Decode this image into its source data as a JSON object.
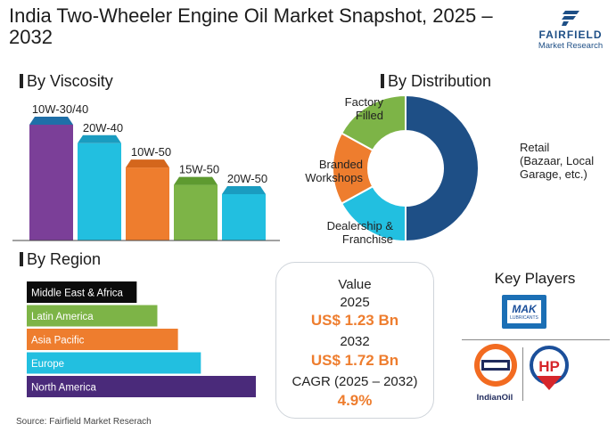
{
  "header": {
    "title": "India Two-Wheeler Engine Oil Market Snapshot, 2025 – 2032",
    "logo_name": "FAIRFIELD",
    "logo_sub": "Market Research"
  },
  "sections": {
    "viscosity": "By Viscosity",
    "distribution": "By Distribution",
    "region": "By Region"
  },
  "chart_data": [
    {
      "type": "bar",
      "title": "By Viscosity",
      "categories": [
        "10W-30/40",
        "20W-40",
        "10W-50",
        "15W-50",
        "20W-50"
      ],
      "values": [
        100,
        84,
        63,
        48,
        40
      ],
      "colors": [
        "#7b3f98",
        "#22bfe0",
        "#ee7d2e",
        "#7db447",
        "#22bfe0"
      ],
      "top_colors": [
        "#1f6fa8",
        "#1a9cc0",
        "#d4661c",
        "#5e9a30",
        "#1a9cc0"
      ],
      "ylim": [
        0,
        100
      ],
      "grid": false
    },
    {
      "type": "pie",
      "title": "By Distribution",
      "categories": [
        "Retail (Bazaar, Local Garage, etc.)",
        "Dealership & Franchise",
        "Branded Workshops",
        "Factory Filled"
      ],
      "display_labels": [
        [
          "Retail",
          "(Bazaar, Local",
          "Garage, etc.)"
        ],
        [
          "Dealership &",
          "Franchise"
        ],
        [
          "Branded",
          "Workshops"
        ],
        [
          "Factory",
          "Filled"
        ]
      ],
      "values": [
        50,
        17,
        16,
        17
      ],
      "colors": [
        "#1e4f86",
        "#22bfe0",
        "#ee7d2e",
        "#7db447"
      ],
      "donut": true
    },
    {
      "type": "bar",
      "orientation": "horizontal",
      "title": "By Region",
      "categories": [
        "Middle East & Africa",
        "Latin America",
        "Asia Pacific",
        "Europe",
        "North America"
      ],
      "values": [
        48,
        57,
        66,
        76,
        100
      ],
      "colors": [
        "#0b0b0b",
        "#7db447",
        "#ee7d2e",
        "#22bfe0",
        "#4a2a7a"
      ],
      "label_color": [
        "#ffffff",
        "#ffffff",
        "#ffffff",
        "#ffffff",
        "#ffffff"
      ],
      "xlim": [
        0,
        100
      ]
    }
  ],
  "value_box": {
    "value_label": "Value",
    "year1": "2025",
    "value1": "US$ 1.23 Bn",
    "year2": "2032",
    "value2": "US$ 1.72 Bn",
    "cagr_label": "CAGR (2025 – 2032)",
    "cagr": "4.9%"
  },
  "key_players": {
    "title": "Key Players",
    "mak": "MAK",
    "mak_sub": "LUBRICANTS",
    "indianoil": "IndianOil",
    "hp": "HP"
  },
  "source": "Source: Fairfield Market Reserach"
}
